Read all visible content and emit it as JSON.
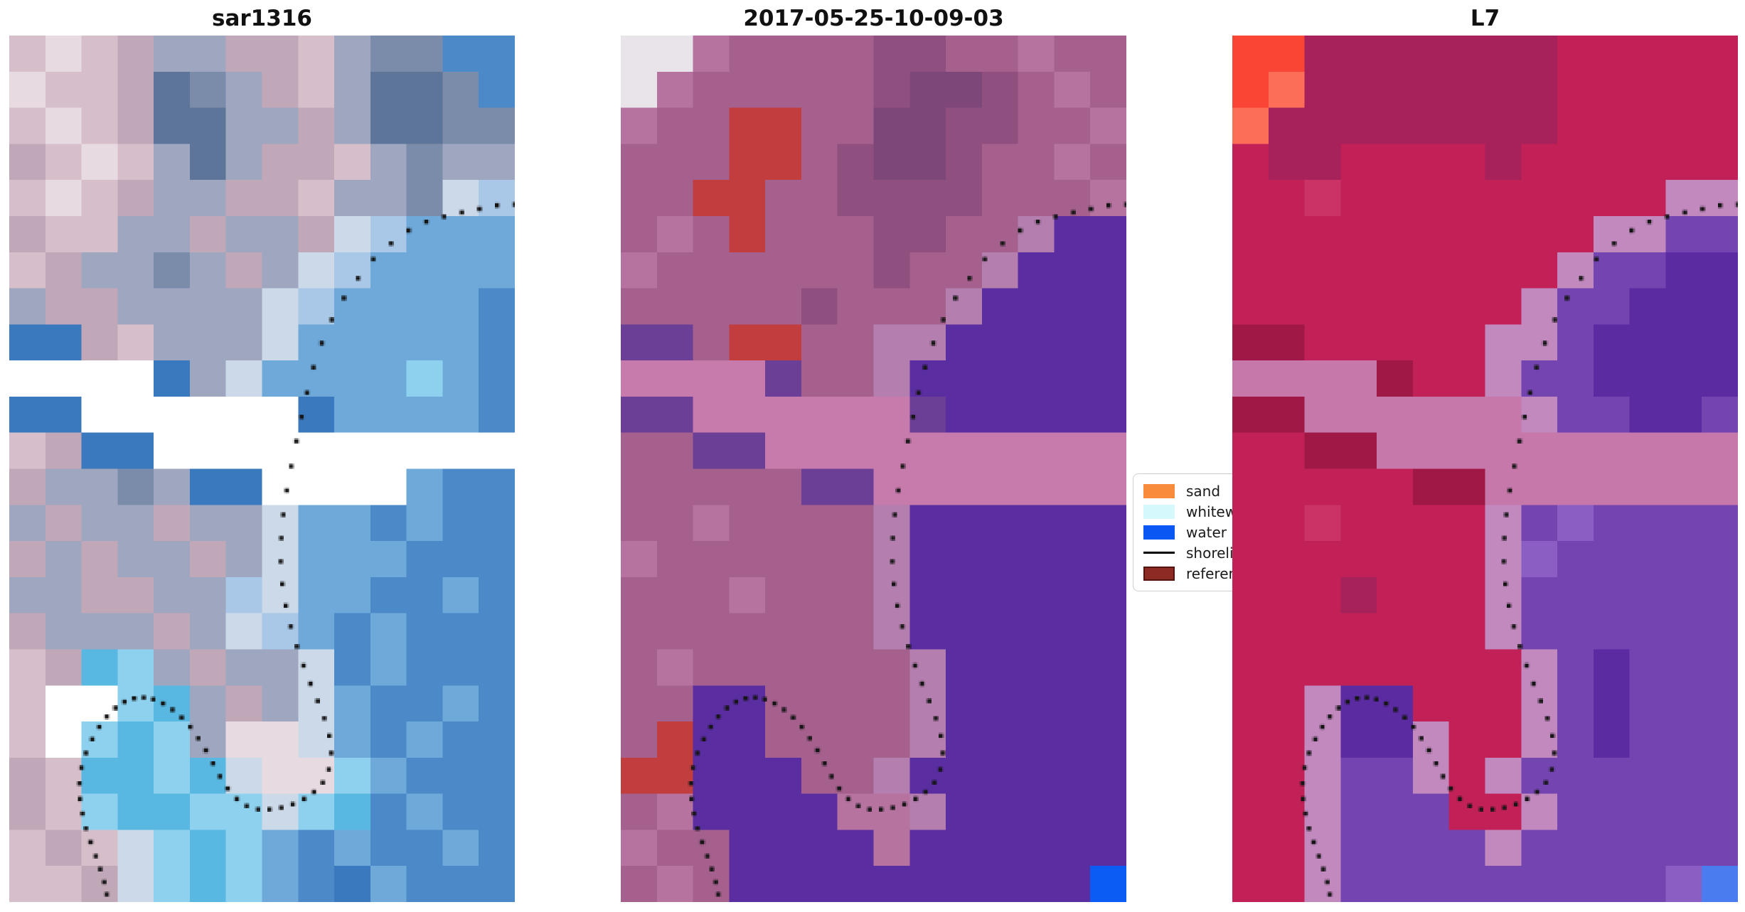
{
  "chart_data": {
    "type": "heatmap",
    "figure_background": "#ffffff",
    "shoreline_color": "#151515",
    "panels": [
      {
        "title": "sar1316",
        "grid_cols": 14,
        "grid_rows": 24,
        "palette": {
          "P": "#e7dae1",
          "p": "#d6bfca",
          "m": "#c1a8b8",
          "g": "#9fa6c0",
          "s": "#7b8cab",
          "S": "#5d7598",
          "t": "#ccd9e8",
          "l": "#a9c7e6",
          "b": "#6ea9da",
          "B": "#4b89c8",
          "D": "#3a79bd",
          "W": "#ffffff",
          "c": "#8ed1ee",
          "C": "#58b8e2"
        },
        "rows": [
          "pPpmggmmpgssBB",
          "PppmSsgmpgSSsB",
          "pPpmSSggmgSSss",
          "mpPpgSgmmpgsgg",
          "pPpmggmmpggstl",
          "mppggmggmtlbbb",
          "pmggsgmgtlbbbb",
          "gmmggggtlbbbbB",
          "DDmpgggtbbbbbB",
          "WWWWDgtbbbbcbB",
          "DDWWWWWWDbbbbB",
          "pmDDWWWWWWWWWW",
          "mggsgDDWWWWbBB",
          "gmggmggtbbBbBB",
          "mgmggmgtbbbBBB",
          "ggmmggltbbBBbB",
          "mgggmgtlbBbBBB",
          "pmCcgmggtBbBBB",
          "pWWcCgmgtbBBbB",
          "pWcCcgPPtbBbBB",
          "mpCCcCtPPcbBBB",
          "mpcCCcctcCBbBB",
          "pmptcCcbBbBBbB",
          "ppmtcCcbBDbBBB"
        ]
      },
      {
        "title": "2017-05-25-10-09-03",
        "grid_cols": 14,
        "grid_rows": 24,
        "palette": {
          "h": "#e8e4ea",
          "R": "#b673a0",
          "L": "#a5608d",
          "M": "#8f5080",
          "N": "#7d4879",
          "r": "#c23d3e",
          "t": "#b47fae",
          "K": "#c77aac",
          "A": "#6b3f95",
          "w": "#5a2da1",
          "b": "#0a5cf5"
        },
        "rows": [
          "hhRLLLLMMLLRLL",
          "hRLLLLLMNNMLRL",
          "RLLrrLLNNMMLLR",
          "LLLrrLMNNMLLRL",
          "LLrrLLMMMMLLLR",
          "LRLrLLLMMLLtww",
          "RLLLLLLMLLtwww",
          "LLLLLMLLLtwwww",
          "AALrrLLttwwwww",
          "KKKKALLtwwwwww",
          "AAKKKKKKAwwwww",
          "LLAAKKKKKKKKKK",
          "LLLLLAAKKKKKKK",
          "LLRLLLLtwwwwww",
          "RLLLLLLtwwwwww",
          "LLLRLLLtwwwwww",
          "LLLLLLLtwwwwww",
          "LRLLLLLLtwwwww",
          "LLwwLLLLtwwwww",
          "LrwwLLLLtwwwww",
          "rrwwwLLtwwwwww",
          "LRwwwwRRtwwwww",
          "RLLwwwwRwwwwww",
          "LRLwwwwwwwwwwb"
        ]
      },
      {
        "title": "L7",
        "grid_cols": 14,
        "grid_rows": 24,
        "palette": {
          "O": "#fa4434",
          "o": "#fc6e58",
          "C": "#c22158",
          "D": "#a7215a",
          "R": "#cb3367",
          "t": "#c289bf",
          "K": "#c678aa",
          "A": "#a01946",
          "w": "#7445b1",
          "W": "#5a2ba1",
          "v": "#8a5ec2",
          "b": "#4a7cf0"
        },
        "rows": [
          "OODDDDDDDCCCCC",
          "OoDDDDDDDCCCCC",
          "oDDDDDDDDCCCCC",
          "CDDCCCCDCCCCCC",
          "CCRCCCCCCCCCtt",
          "CCCCCCCCCCttww",
          "CCCCCCCCCtwwWW",
          "CCCCCCCCtwwWWW",
          "AACCCCCttwWWWW",
          "KKKKACCtwwWWWW",
          "AAKKKKKKtwwWWw",
          "CCAAKKKKKKKKKK",
          "CCCCCAAKKKKKKK",
          "CCRCCCCtwvwwww",
          "CCCCCCCtvwwwww",
          "CCCDCCCtwwwwww",
          "CCCCCCCtwwwwww",
          "CCCCCCCCtwWwww",
          "CCtWWCCCtwWwww",
          "CCtWWtCCtwWwww",
          "CCtwwtCtwwwwww",
          "CCtwwwCCtwwwww",
          "CCtwwwwtwwwwww",
          "CCtwwwwwwwwwvb"
        ]
      }
    ],
    "shoreline_points": [
      [
        1.0,
        0.195
      ],
      [
        0.965,
        0.196
      ],
      [
        0.93,
        0.2
      ],
      [
        0.895,
        0.204
      ],
      [
        0.86,
        0.209
      ],
      [
        0.825,
        0.215
      ],
      [
        0.79,
        0.225
      ],
      [
        0.755,
        0.24
      ],
      [
        0.72,
        0.258
      ],
      [
        0.69,
        0.28
      ],
      [
        0.662,
        0.303
      ],
      [
        0.638,
        0.328
      ],
      [
        0.618,
        0.355
      ],
      [
        0.602,
        0.383
      ],
      [
        0.589,
        0.412
      ],
      [
        0.578,
        0.44
      ],
      [
        0.568,
        0.468
      ],
      [
        0.558,
        0.497
      ],
      [
        0.549,
        0.525
      ],
      [
        0.542,
        0.553
      ],
      [
        0.538,
        0.58
      ],
      [
        0.537,
        0.607
      ],
      [
        0.54,
        0.633
      ],
      [
        0.547,
        0.658
      ],
      [
        0.557,
        0.682
      ],
      [
        0.569,
        0.705
      ],
      [
        0.582,
        0.727
      ],
      [
        0.596,
        0.748
      ],
      [
        0.61,
        0.768
      ],
      [
        0.623,
        0.788
      ],
      [
        0.633,
        0.808
      ],
      [
        0.637,
        0.828
      ],
      [
        0.632,
        0.847
      ],
      [
        0.62,
        0.862
      ],
      [
        0.603,
        0.873
      ],
      [
        0.583,
        0.881
      ],
      [
        0.561,
        0.887
      ],
      [
        0.538,
        0.891
      ],
      [
        0.515,
        0.893
      ],
      [
        0.492,
        0.893
      ],
      [
        0.47,
        0.889
      ],
      [
        0.45,
        0.881
      ],
      [
        0.432,
        0.869
      ],
      [
        0.417,
        0.855
      ],
      [
        0.403,
        0.84
      ],
      [
        0.389,
        0.825
      ],
      [
        0.374,
        0.811
      ],
      [
        0.358,
        0.798
      ],
      [
        0.341,
        0.787
      ],
      [
        0.323,
        0.778
      ],
      [
        0.304,
        0.771
      ],
      [
        0.285,
        0.766
      ],
      [
        0.266,
        0.764
      ],
      [
        0.247,
        0.765
      ],
      [
        0.228,
        0.769
      ],
      [
        0.21,
        0.776
      ],
      [
        0.193,
        0.786
      ],
      [
        0.178,
        0.798
      ],
      [
        0.164,
        0.812
      ],
      [
        0.152,
        0.828
      ],
      [
        0.143,
        0.845
      ],
      [
        0.139,
        0.863
      ],
      [
        0.14,
        0.881
      ],
      [
        0.145,
        0.898
      ],
      [
        0.152,
        0.915
      ],
      [
        0.161,
        0.931
      ],
      [
        0.171,
        0.947
      ],
      [
        0.18,
        0.962
      ],
      [
        0.188,
        0.977
      ],
      [
        0.193,
        0.991
      ]
    ],
    "legend": {
      "items": [
        {
          "label": "sand",
          "type": "patch",
          "color": "#f98b3d"
        },
        {
          "label": "whitewater",
          "type": "patch",
          "color": "#d4f8fc"
        },
        {
          "label": "water",
          "type": "patch",
          "color": "#0b57f4"
        },
        {
          "label": "shoreline",
          "type": "line",
          "color": "#000000"
        },
        {
          "label": "reference",
          "type": "patch",
          "color": "#8b2b24",
          "border": "#531410"
        }
      ]
    }
  }
}
